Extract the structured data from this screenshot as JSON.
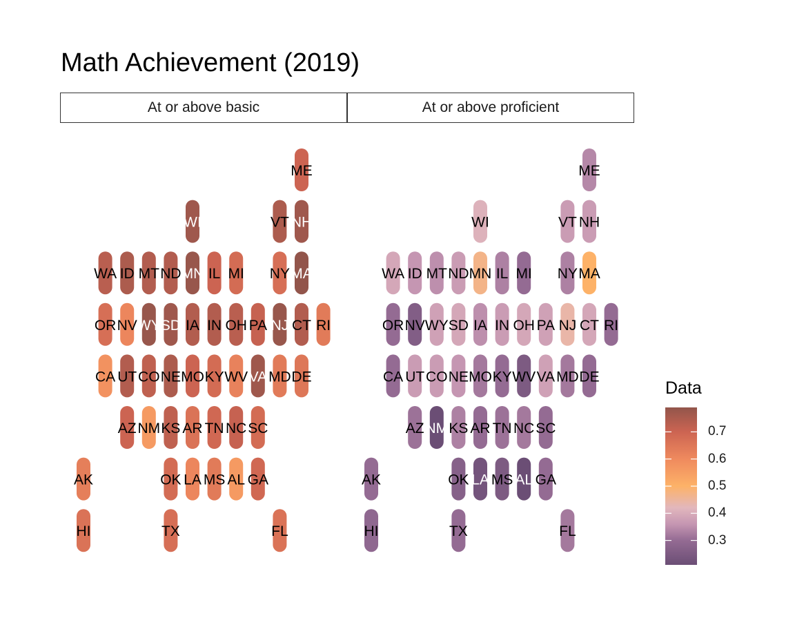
{
  "title": "Math Achievement (2019)",
  "chart_data": {
    "type": "heatmap",
    "title": "Math Achievement (2019)",
    "facets": [
      "At or above basic",
      "At or above proficient"
    ],
    "legend": {
      "title": "Data",
      "ticks": [
        "0.3",
        "0.4",
        "0.5",
        "0.6",
        "0.7"
      ],
      "tick_values": [
        0.3,
        0.4,
        0.5,
        0.6,
        0.7
      ],
      "range": [
        0.21,
        0.79
      ],
      "placement": "right"
    },
    "colorscale": [
      {
        "v": 0.21,
        "c": "#6b4e75"
      },
      {
        "v": 0.3,
        "c": "#946b93"
      },
      {
        "v": 0.36,
        "c": "#c596b2"
      },
      {
        "v": 0.42,
        "c": "#e2b7bd"
      },
      {
        "v": 0.5,
        "c": "#fdb268"
      },
      {
        "v": 0.6,
        "c": "#ef8a5e"
      },
      {
        "v": 0.7,
        "c": "#cc6452"
      },
      {
        "v": 0.79,
        "c": "#92554b"
      }
    ],
    "states": [
      {
        "abbr": "ME",
        "col": 10,
        "row": 0,
        "basic": 0.7,
        "proficient": 0.34
      },
      {
        "abbr": "WI",
        "col": 5,
        "row": 1,
        "basic": 0.77,
        "proficient": 0.41
      },
      {
        "abbr": "VT",
        "col": 9,
        "row": 1,
        "basic": 0.75,
        "proficient": 0.37
      },
      {
        "abbr": "NH",
        "col": 10,
        "row": 1,
        "basic": 0.77,
        "proficient": 0.37
      },
      {
        "abbr": "WA",
        "col": 1,
        "row": 2,
        "basic": 0.73,
        "proficient": 0.39
      },
      {
        "abbr": "ID",
        "col": 2,
        "row": 2,
        "basic": 0.75,
        "proficient": 0.36
      },
      {
        "abbr": "MT",
        "col": 3,
        "row": 2,
        "basic": 0.74,
        "proficient": 0.35
      },
      {
        "abbr": "ND",
        "col": 4,
        "row": 2,
        "basic": 0.74,
        "proficient": 0.37
      },
      {
        "abbr": "MN",
        "col": 5,
        "row": 2,
        "basic": 0.78,
        "proficient": 0.47
      },
      {
        "abbr": "IL",
        "col": 6,
        "row": 2,
        "basic": 0.7,
        "proficient": 0.33
      },
      {
        "abbr": "MI",
        "col": 7,
        "row": 2,
        "basic": 0.68,
        "proficient": 0.3
      },
      {
        "abbr": "NY",
        "col": 9,
        "row": 2,
        "basic": 0.67,
        "proficient": 0.33
      },
      {
        "abbr": "MA",
        "col": 10,
        "row": 2,
        "basic": 0.79,
        "proficient": 0.5
      },
      {
        "abbr": "OR",
        "col": 1,
        "row": 3,
        "basic": 0.67,
        "proficient": 0.3
      },
      {
        "abbr": "NV",
        "col": 2,
        "row": 3,
        "basic": 0.61,
        "proficient": 0.26
      },
      {
        "abbr": "WY",
        "col": 3,
        "row": 3,
        "basic": 0.78,
        "proficient": 0.38
      },
      {
        "abbr": "SD",
        "col": 4,
        "row": 3,
        "basic": 0.77,
        "proficient": 0.39
      },
      {
        "abbr": "IA",
        "col": 5,
        "row": 3,
        "basic": 0.74,
        "proficient": 0.35
      },
      {
        "abbr": "IN",
        "col": 6,
        "row": 3,
        "basic": 0.74,
        "proficient": 0.37
      },
      {
        "abbr": "OH",
        "col": 7,
        "row": 3,
        "basic": 0.73,
        "proficient": 0.39
      },
      {
        "abbr": "PA",
        "col": 8,
        "row": 3,
        "basic": 0.71,
        "proficient": 0.38
      },
      {
        "abbr": "NJ",
        "col": 9,
        "row": 3,
        "basic": 0.78,
        "proficient": 0.44
      },
      {
        "abbr": "CT",
        "col": 10,
        "row": 3,
        "basic": 0.74,
        "proficient": 0.39
      },
      {
        "abbr": "RI",
        "col": 11,
        "row": 3,
        "basic": 0.64,
        "proficient": 0.3
      },
      {
        "abbr": "CA",
        "col": 1,
        "row": 4,
        "basic": 0.58,
        "proficient": 0.3
      },
      {
        "abbr": "UT",
        "col": 2,
        "row": 4,
        "basic": 0.74,
        "proficient": 0.37
      },
      {
        "abbr": "CO",
        "col": 3,
        "row": 4,
        "basic": 0.72,
        "proficient": 0.37
      },
      {
        "abbr": "NE",
        "col": 4,
        "row": 4,
        "basic": 0.75,
        "proficient": 0.36
      },
      {
        "abbr": "MO",
        "col": 5,
        "row": 4,
        "basic": 0.7,
        "proficient": 0.32
      },
      {
        "abbr": "KY",
        "col": 6,
        "row": 4,
        "basic": 0.68,
        "proficient": 0.3
      },
      {
        "abbr": "WV",
        "col": 7,
        "row": 4,
        "basic": 0.62,
        "proficient": 0.25
      },
      {
        "abbr": "VA",
        "col": 8,
        "row": 4,
        "basic": 0.77,
        "proficient": 0.38
      },
      {
        "abbr": "MD",
        "col": 9,
        "row": 4,
        "basic": 0.64,
        "proficient": 0.32
      },
      {
        "abbr": "DE",
        "col": 10,
        "row": 4,
        "basic": 0.65,
        "proficient": 0.3
      },
      {
        "abbr": "AZ",
        "col": 2,
        "row": 5,
        "basic": 0.7,
        "proficient": 0.31
      },
      {
        "abbr": "NM",
        "col": 3,
        "row": 5,
        "basic": 0.56,
        "proficient": 0.21
      },
      {
        "abbr": "KS",
        "col": 4,
        "row": 5,
        "basic": 0.72,
        "proficient": 0.33
      },
      {
        "abbr": "AR",
        "col": 5,
        "row": 5,
        "basic": 0.66,
        "proficient": 0.3
      },
      {
        "abbr": "TN",
        "col": 6,
        "row": 5,
        "basic": 0.69,
        "proficient": 0.31
      },
      {
        "abbr": "NC",
        "col": 7,
        "row": 5,
        "basic": 0.71,
        "proficient": 0.32
      },
      {
        "abbr": "SC",
        "col": 8,
        "row": 5,
        "basic": 0.68,
        "proficient": 0.3
      },
      {
        "abbr": "AK",
        "col": 0,
        "row": 6,
        "basic": 0.63,
        "proficient": 0.3
      },
      {
        "abbr": "OK",
        "col": 4,
        "row": 6,
        "basic": 0.68,
        "proficient": 0.27
      },
      {
        "abbr": "LA",
        "col": 5,
        "row": 6,
        "basic": 0.61,
        "proficient": 0.23
      },
      {
        "abbr": "MS",
        "col": 6,
        "row": 6,
        "basic": 0.64,
        "proficient": 0.25
      },
      {
        "abbr": "AL",
        "col": 7,
        "row": 6,
        "basic": 0.56,
        "proficient": 0.21
      },
      {
        "abbr": "GA",
        "col": 8,
        "row": 6,
        "basic": 0.69,
        "proficient": 0.3
      },
      {
        "abbr": "HI",
        "col": 0,
        "row": 7,
        "basic": 0.66,
        "proficient": 0.29
      },
      {
        "abbr": "TX",
        "col": 4,
        "row": 7,
        "basic": 0.67,
        "proficient": 0.3
      },
      {
        "abbr": "FL",
        "col": 9,
        "row": 7,
        "basic": 0.66,
        "proficient": 0.32
      }
    ]
  }
}
